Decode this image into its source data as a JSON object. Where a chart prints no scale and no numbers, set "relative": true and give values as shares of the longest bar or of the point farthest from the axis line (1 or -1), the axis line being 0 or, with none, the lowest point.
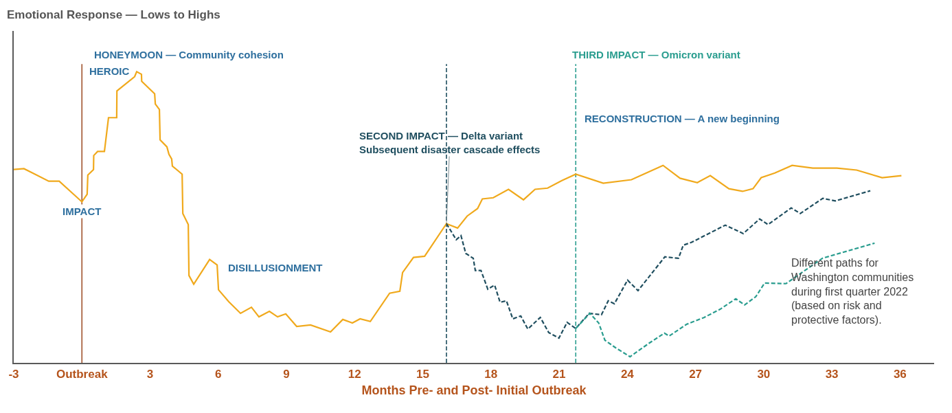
{
  "chart_data": {
    "type": "line",
    "relative": true,
    "xlabel": "Months Pre- and Post- Initial Outbreak",
    "ylabel": "Emotional Response — Lows to Highs",
    "xlim": [
      -3,
      37.5
    ],
    "xticks": [
      -3,
      {
        "value": 0,
        "label": "Outbreak"
      },
      3,
      6,
      9,
      12,
      15,
      18,
      21,
      24,
      27,
      30,
      33,
      36
    ],
    "grid": false,
    "series": [
      {
        "color": "#f0a91c",
        "line_style": "solid",
        "x": [
          -3.0,
          -2.55,
          -1.46,
          -1.0,
          0.0,
          0.23,
          0.26,
          0.51,
          0.52,
          0.69,
          0.99,
          1.17,
          1.53,
          1.54,
          2.32,
          2.41,
          2.62,
          2.63,
          3.2,
          3.23,
          3.41,
          3.44,
          3.74,
          3.83,
          3.95,
          3.98,
          4.41,
          4.44,
          4.68,
          4.71,
          4.92,
          5.62,
          5.95,
          6.01,
          6.46,
          6.98,
          7.46,
          7.79,
          8.25,
          8.61,
          8.97,
          9.45,
          10.06,
          10.94,
          11.48,
          11.9,
          12.24,
          12.69,
          13.54,
          13.99,
          14.11,
          14.59,
          15.08,
          16.04,
          16.53,
          16.95,
          17.41,
          17.62,
          18.1,
          18.77,
          19.43,
          19.94,
          20.49,
          21.12,
          21.73,
          22.94,
          24.18,
          25.57,
          26.32,
          27.08,
          27.65,
          28.47,
          29.07,
          29.53,
          29.89,
          30.49,
          31.25,
          32.16,
          33.22,
          34.09,
          35.21,
          36.06
        ],
        "values": [
          0.664,
          0.667,
          0.624,
          0.624,
          0.553,
          0.579,
          0.645,
          0.664,
          0.712,
          0.726,
          0.726,
          0.842,
          0.842,
          0.934,
          0.983,
          1.0,
          0.991,
          0.967,
          0.924,
          0.889,
          0.87,
          0.766,
          0.742,
          0.716,
          0.7,
          0.676,
          0.648,
          0.513,
          0.475,
          0.3,
          0.27,
          0.355,
          0.336,
          0.251,
          0.21,
          0.17,
          0.191,
          0.158,
          0.177,
          0.158,
          0.168,
          0.125,
          0.13,
          0.106,
          0.149,
          0.137,
          0.151,
          0.142,
          0.239,
          0.246,
          0.31,
          0.362,
          0.366,
          0.478,
          0.463,
          0.504,
          0.53,
          0.563,
          0.567,
          0.596,
          0.56,
          0.596,
          0.6,
          0.626,
          0.648,
          0.617,
          0.629,
          0.678,
          0.634,
          0.619,
          0.643,
          0.598,
          0.589,
          0.598,
          0.636,
          0.652,
          0.678,
          0.669,
          0.669,
          0.662,
          0.636,
          0.643
        ]
      },
      {
        "color": "#1f4e5f",
        "line_style": "dashed",
        "x": [
          16.04,
          16.47,
          16.68,
          16.89,
          17.22,
          17.31,
          17.56,
          17.86,
          18.16,
          18.4,
          18.68,
          18.96,
          19.31,
          19.62,
          20.17,
          20.54,
          20.99,
          21.35,
          21.73,
          22.32,
          22.86,
          23.16,
          23.43,
          24.01,
          24.47,
          25.65,
          26.25,
          26.46,
          26.83,
          28.31,
          29.1,
          29.82,
          30.19,
          31.21,
          31.61,
          32.6,
          33.15,
          34.69
        ],
        "values": [
          0.478,
          0.423,
          0.437,
          0.376,
          0.359,
          0.317,
          0.317,
          0.253,
          0.267,
          0.208,
          0.213,
          0.151,
          0.161,
          0.116,
          0.156,
          0.104,
          0.085,
          0.139,
          0.118,
          0.17,
          0.165,
          0.213,
          0.203,
          0.284,
          0.248,
          0.364,
          0.359,
          0.404,
          0.414,
          0.473,
          0.444,
          0.494,
          0.475,
          0.532,
          0.513,
          0.565,
          0.556,
          0.591
        ]
      },
      {
        "color": "#2a9d8f",
        "line_style": "dashed",
        "x": [
          21.73,
          22.35,
          22.74,
          23.01,
          23.48,
          24.12,
          24.93,
          25.63,
          25.84,
          26.6,
          27.38,
          28.08,
          28.77,
          29.16,
          29.65,
          30.04,
          30.98,
          32.58,
          34.88
        ],
        "values": [
          0.118,
          0.17,
          0.137,
          0.078,
          0.052,
          0.021,
          0.066,
          0.102,
          0.092,
          0.132,
          0.156,
          0.184,
          0.22,
          0.199,
          0.227,
          0.274,
          0.272,
          0.359,
          0.411
        ]
      }
    ],
    "ref_lines": [
      {
        "axis": "x",
        "value": 0,
        "color": "#a0522d",
        "line_style": "solid"
      },
      {
        "axis": "x",
        "value": 16.04,
        "color": "#1f4e5f",
        "line_style": "dashed"
      },
      {
        "axis": "x",
        "value": 21.73,
        "color": "#2a9d8f",
        "line_style": "dashed"
      }
    ],
    "annotations": [
      {
        "text": "IMPACT",
        "x": 0,
        "y": 0.553
      },
      "HEROIC",
      "HONEYMOON — Community cohesion",
      "DISILLUSIONMENT",
      {
        "text": "SECOND IMPACT — Delta variant\nSubsequent disaster cascade effects",
        "x": 16.04,
        "y": 0.478
      },
      "THIRD IMPACT — Omicron variant",
      "RECONSTRUCTION — A new beginning",
      "Different paths for\nWashington communities\nduring first quarter 2022\n(based on risk and\nprotective factors)."
    ]
  }
}
